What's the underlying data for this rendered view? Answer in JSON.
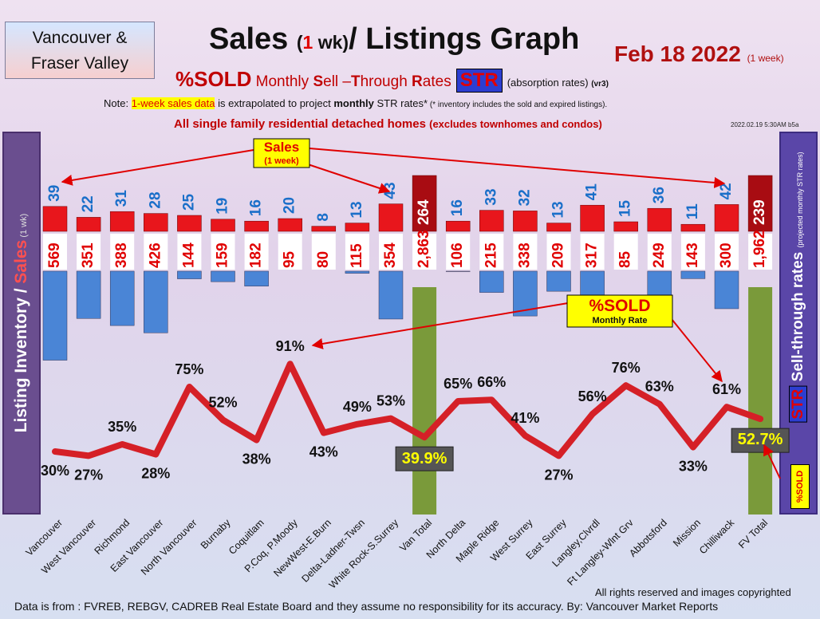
{
  "header": {
    "region_line1": "Vancouver &",
    "region_line2": "Fraser Valley",
    "title_a": "Sales ",
    "title_b": "(",
    "title_c": "1",
    "title_d": " wk)",
    "title_e": "/ Listings Graph",
    "date": "Feb  18  2022",
    "date_note": "(1 week)",
    "sold_word": "%SOLD",
    "sold_sub_1": " Monthly ",
    "sold_sub_S": "S",
    "sold_sub_2": "ell –",
    "sold_sub_T": "T",
    "sold_sub_3": "hrough ",
    "sold_sub_R": "R",
    "sold_sub_4": "ates",
    "str_badge": "STR",
    "absorption": "(absorption rates)",
    "version": "(vr3)",
    "note_a": "Note: ",
    "note_hl": "1-week sales data",
    "note_b": " is extrapolated to project ",
    "note_bold": "monthly",
    "note_c": " STR rates*",
    "note_small": " (* inventory includes the sold and expired listings).",
    "scope_a": "All single family residential detached homes ",
    "scope_b": "(excludes townhomes and condos)",
    "timestamp": "2022.02.19 5:30AM b5a"
  },
  "left_axis": {
    "label_a": "Listing Inventory ",
    "label_slash": "/ ",
    "label_sales": "Sales",
    "label_wk": " (1 wk)"
  },
  "right_axis": {
    "label_str": "STR",
    "label_text": " Sell-through rates ",
    "label_small": "(projected monthly STR rates)",
    "badge": "%SOLD"
  },
  "callouts": {
    "sales_line1": "Sales",
    "sales_line2": "(1 week)",
    "sold_line1": "%SOLD",
    "sold_line2": "Monthly Rate"
  },
  "footer": {
    "source": "Data is from : FVREB, REBGV, CADREB Real Estate Board and they assume no responsibility for its accuracy. By: Vancouver Market Reports",
    "rights": "All rights reserved and  images copyrighted"
  },
  "colors": {
    "sales_bar": "#e8161c",
    "inventory_bar": "#4a85d6",
    "total_bar": "#7a9a3a",
    "str_line": "#d52027",
    "sales_label": "#1a6fc9",
    "inventory_label": "#e00000"
  },
  "chart_data": {
    "type": "bar",
    "categories": [
      "Vancouver",
      "West Vancouver",
      "Richmond",
      "East Vancouver",
      "North Vancouver",
      "Burnaby",
      "Coquitlam",
      "P.Coq, P.Moody",
      "NewWest-E.Burn",
      "Delta-Ladner-Twsn",
      "White Rock-S.Surrey",
      "Van Total",
      "North Delta",
      "Maple Ridge",
      "West Surrey",
      "East Surrey",
      "Langley,Clvrdl",
      "Ft Langley-Wlnt Grv",
      "Abbotsford",
      "Mission",
      "Chilliwack",
      "FV Total"
    ],
    "totals": [
      "Van Total",
      "FV Total"
    ],
    "series": [
      {
        "name": "Sales",
        "values": [
          39,
          22,
          31,
          28,
          25,
          19,
          16,
          20,
          8,
          13,
          43,
          264,
          16,
          33,
          32,
          13,
          41,
          15,
          36,
          11,
          42,
          239
        ]
      },
      {
        "name": "Listing Inventory",
        "values": [
          569,
          351,
          388,
          426,
          144,
          159,
          182,
          95,
          80,
          115,
          354,
          2863,
          106,
          215,
          338,
          209,
          317,
          85,
          249,
          143,
          300,
          1962
        ]
      },
      {
        "name": "%SOLD",
        "values": [
          30,
          27,
          35,
          28,
          75,
          52,
          38,
          91,
          43,
          49,
          53,
          39.9,
          65,
          66,
          41,
          27,
          56,
          76,
          63,
          33,
          61,
          52.7
        ]
      }
    ],
    "value_labels": {
      "sales": [
        "39",
        "22",
        "31",
        "28",
        "25",
        "19",
        "16",
        "20",
        "8",
        "13",
        "43",
        "264",
        "16",
        "33",
        "32",
        "13",
        "41",
        "15",
        "36",
        "11",
        "42",
        "239"
      ],
      "inventory": [
        "569",
        "351",
        "388",
        "426",
        "144",
        "159",
        "182",
        "95",
        "80",
        "115",
        "354",
        "2,863",
        "106",
        "215",
        "338",
        "209",
        "317",
        "85",
        "249",
        "143",
        "300",
        "1,962"
      ],
      "sold": [
        "30%",
        "27%",
        "35%",
        "28%",
        "75%",
        "52%",
        "38%",
        "91%",
        "43%",
        "49%",
        "53%",
        "39.9%",
        "65%",
        "66%",
        "41%",
        "27%",
        "56%",
        "76%",
        "63%",
        "33%",
        "61%",
        "52.7%"
      ]
    }
  }
}
